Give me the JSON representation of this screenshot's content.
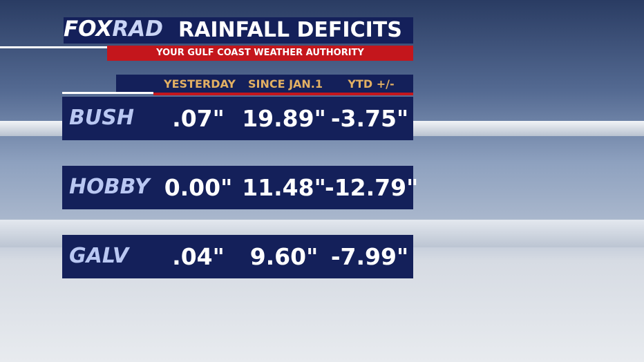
{
  "header": {
    "logo": {
      "left": "FOX",
      "right": "RAD"
    },
    "title": "RAINFALL DEFICITS",
    "subtitle": "YOUR GULF COAST WEATHER AUTHORITY"
  },
  "table": {
    "columns": [
      "YESTERDAY",
      "SINCE JAN.1",
      "YTD +/-"
    ],
    "rows": [
      [
        "BUSH",
        ".07\"",
        "19.89\"",
        "-3.75\""
      ],
      [
        "HOBBY",
        "0.00\"",
        "11.48\"",
        "-12.79\""
      ],
      [
        "GALV",
        ".04\"",
        "9.60\"",
        "-7.99\""
      ]
    ]
  }
}
